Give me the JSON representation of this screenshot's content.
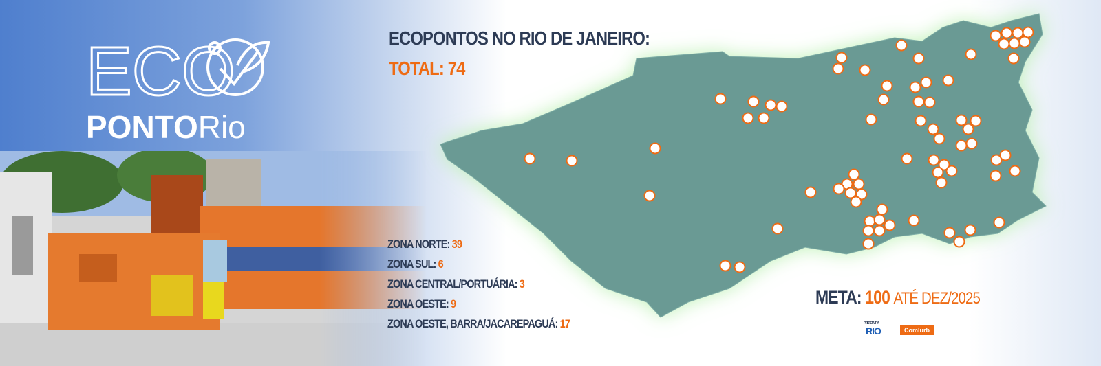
{
  "logo": {
    "eco": "ECO",
    "ponto": "PONTO",
    "rio": "Rio"
  },
  "header": {
    "title": "ECOPONTOS NO RIO DE JANEIRO:",
    "total_label": "TOTAL:",
    "total": 74
  },
  "zones": [
    {
      "label": "ZONA NORTE:",
      "count": 39
    },
    {
      "label": "ZONA SUL:",
      "count": 6
    },
    {
      "label": "ZONA CENTRAL/PORTUÁRIA:",
      "count": 3
    },
    {
      "label": "ZONA OESTE:",
      "count": 9
    },
    {
      "label": "ZONA OESTE, BARRA/JACAREPAGUÁ:",
      "count": 17
    }
  ],
  "goal": {
    "label": "META:",
    "value": 100,
    "deadline": "ATÉ DEZ/2025"
  },
  "footer": {
    "prefeitura": "PREFEITURA",
    "rio": "RIO",
    "comlurb": "Comlurb"
  }
}
